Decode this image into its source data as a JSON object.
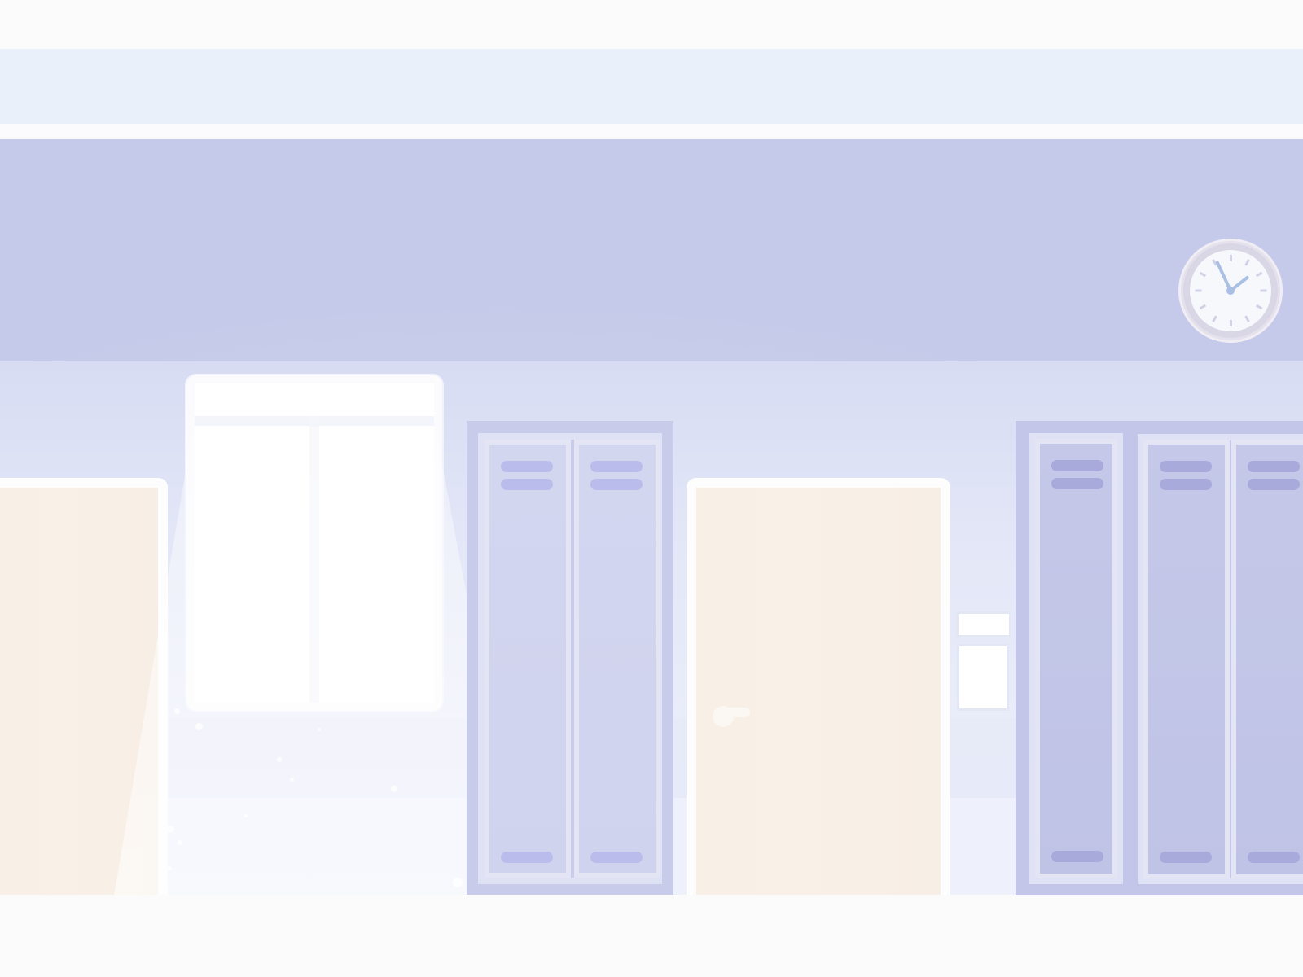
{
  "scene": {
    "name": "school-hallway",
    "palette": {
      "upper_wall": "#c5caea",
      "lower_wall": "#e3e7f7",
      "door_wood": "#f8efe6",
      "locker_light": "#d3d6ef",
      "locker_dark": "#c1c4e6",
      "trim_white": "#fdfdfe"
    },
    "clock": {
      "hour_hand_angle_deg": 52,
      "minute_hand_angle_deg": -25
    }
  }
}
